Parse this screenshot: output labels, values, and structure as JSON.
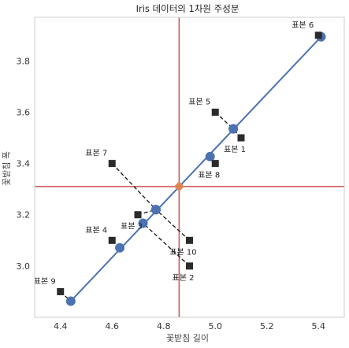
{
  "chart_data": {
    "type": "scatter",
    "title": "Iris 데이터의 1차원 주성분",
    "xlabel": "꽃받침 길이",
    "ylabel": "꽃받침 폭",
    "xlim": [
      4.3,
      5.5
    ],
    "ylim": [
      2.8,
      3.97
    ],
    "x_ticks": [
      "4.4",
      "4.6",
      "4.8",
      "5.0",
      "5.2",
      "5.4"
    ],
    "y_ticks": [
      "3.0",
      "3.2",
      "3.4",
      "3.6",
      "3.8"
    ],
    "grid": false,
    "mean_point": {
      "x": 4.86,
      "y": 3.31
    },
    "original_points": [
      {
        "label": "표본 1",
        "x": 5.1,
        "y": 3.5
      },
      {
        "label": "표본 2",
        "x": 4.9,
        "y": 3.0
      },
      {
        "label": "표본 3",
        "x": 4.7,
        "y": 3.2
      },
      {
        "label": "표본 4",
        "x": 4.6,
        "y": 3.1
      },
      {
        "label": "표본 5",
        "x": 5.0,
        "y": 3.6
      },
      {
        "label": "표본 6",
        "x": 5.4,
        "y": 3.9
      },
      {
        "label": "표본 7",
        "x": 4.6,
        "y": 3.4
      },
      {
        "label": "표본 8",
        "x": 5.0,
        "y": 3.4
      },
      {
        "label": "표본 9",
        "x": 4.4,
        "y": 2.9
      },
      {
        "label": "표본 10",
        "x": 4.9,
        "y": 3.1
      }
    ],
    "projected_points": [
      {
        "x": 5.07,
        "y": 3.535
      },
      {
        "x": 4.72,
        "y": 3.167
      },
      {
        "x": 4.77,
        "y": 3.22
      },
      {
        "x": 4.63,
        "y": 3.071
      },
      {
        "x": 5.07,
        "y": 3.535
      },
      {
        "x": 5.41,
        "y": 3.894
      },
      {
        "x": 4.77,
        "y": 3.22
      },
      {
        "x": 4.98,
        "y": 3.427
      },
      {
        "x": 4.44,
        "y": 2.863
      },
      {
        "x": 4.77,
        "y": 3.22
      }
    ],
    "colors": {
      "original": "#2b2b2b",
      "projected": "#4c72b0",
      "mean": "#dd8452",
      "mean_lines": "#d0575d",
      "pc_line": "#4c72b0",
      "residual": "#222222",
      "frame": "#cccccc"
    }
  }
}
